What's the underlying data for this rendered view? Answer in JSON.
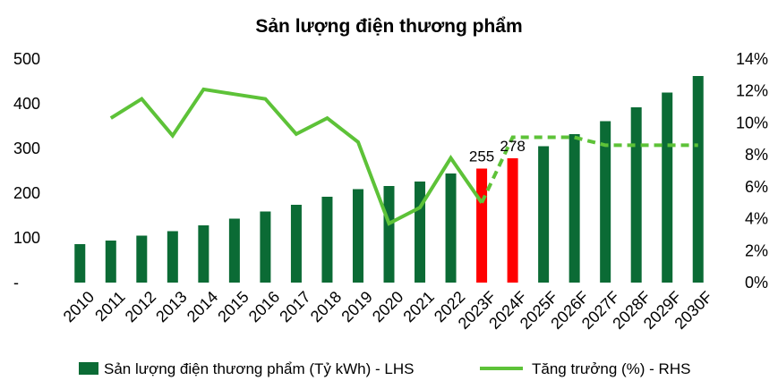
{
  "chart_data": {
    "type": "bar",
    "title": "Sản lượng điện thương phẩm",
    "categories": [
      "2010",
      "2011",
      "2012",
      "2013",
      "2014",
      "2015",
      "2016",
      "2017",
      "2018",
      "2019",
      "2020",
      "2021",
      "2022",
      "2023F",
      "2024F",
      "2025F",
      "2026F",
      "2027F",
      "2028F",
      "2029F",
      "2030F"
    ],
    "series": [
      {
        "name": "Sản lượng điện thương phẩm (Tỷ kWh) - LHS",
        "type": "bar",
        "axis": "left",
        "color": "#0b6b35",
        "highlight_color": "#ff0000",
        "highlight_categories": [
          "2023F",
          "2024F"
        ],
        "values": [
          86,
          94,
          105,
          115,
          128,
          143,
          159,
          174,
          192,
          209,
          216,
          226,
          244,
          255,
          278,
          305,
          332,
          361,
          392,
          425,
          462
        ]
      },
      {
        "name": "Tăng trưởng (%) - RHS",
        "type": "line",
        "axis": "right",
        "color": "#5dc238",
        "dashed_from": "2023F",
        "values": [
          null,
          10.3,
          11.5,
          9.2,
          12.1,
          11.8,
          11.5,
          9.3,
          10.3,
          8.8,
          3.7,
          4.7,
          7.8,
          5.0,
          9.1,
          9.1,
          9.1,
          8.6,
          8.6,
          8.6,
          8.6
        ]
      }
    ],
    "data_labels": [
      {
        "category": "2023F",
        "text": "255"
      },
      {
        "category": "2024F",
        "text": "278"
      }
    ],
    "y_left": {
      "ylim": [
        0,
        500
      ],
      "ticks": [
        0,
        100,
        200,
        300,
        400,
        500
      ],
      "tick_labels": [
        "-",
        "100",
        "200",
        "300",
        "400",
        "500"
      ]
    },
    "y_right": {
      "ylim": [
        0,
        14
      ],
      "ticks": [
        0,
        2,
        4,
        6,
        8,
        10,
        12,
        14
      ],
      "tick_labels": [
        "0%",
        "2%",
        "4%",
        "6%",
        "8%",
        "10%",
        "12%",
        "14%"
      ]
    },
    "xlabel": "",
    "ylabel": "",
    "grid": false,
    "legend_position": "bottom"
  }
}
